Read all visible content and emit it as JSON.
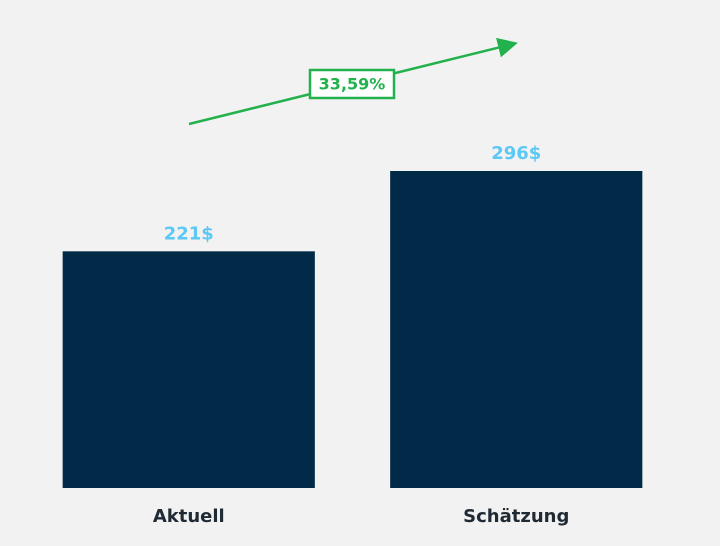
{
  "chart_data": {
    "type": "bar",
    "categories": [
      "Aktuell",
      "Schätzung"
    ],
    "values": [
      221,
      296
    ],
    "value_labels": [
      "221$",
      "296$"
    ],
    "color": "#002a48",
    "annotation": "33,59%"
  }
}
